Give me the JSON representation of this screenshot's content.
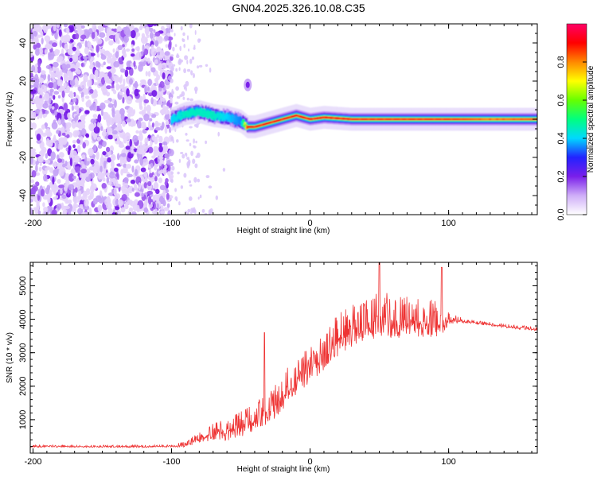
{
  "figure": {
    "title": "GN04.2025.326.10.08.C35"
  },
  "chart_data": [
    {
      "type": "heatmap",
      "title": "GN04.2025.326.10.08.C35",
      "xlabel": "Height of straight line (km)",
      "ylabel": "Frequency (Hz)",
      "xlim": [
        -202,
        164
      ],
      "ylim": [
        -50,
        50
      ],
      "xticks": [
        -200,
        -100,
        0,
        100
      ],
      "yticks": [
        -40,
        -20,
        0,
        20,
        40
      ],
      "colorbar": {
        "label": "Normalized spectral amplitude",
        "range": [
          0.0,
          1.0
        ],
        "ticks": [
          "0.0",
          "0.2",
          "0.4",
          "0.6",
          "0.8"
        ],
        "colormap": [
          "#ffffff",
          "#cfaef8",
          "#7a1fea",
          "#2222ff",
          "#00d8ff",
          "#00ff80",
          "#66ff00",
          "#ffff00",
          "#ff8800",
          "#ff0000",
          "#ff0066"
        ]
      },
      "regions": [
        {
          "name": "noise",
          "x_range": [
            -202,
            -100
          ],
          "freq_range": [
            -50,
            50
          ],
          "amplitude": 0.15
        },
        {
          "name": "scattered",
          "x_range": [
            -100,
            -80
          ],
          "freq_range": [
            -50,
            50
          ],
          "amplitude": 0.05
        },
        {
          "name": "burst",
          "x": -45,
          "freq": 18,
          "amplitude": 0.2
        }
      ],
      "ridge": {
        "x": [
          -100,
          -90,
          -80,
          -70,
          -60,
          -50,
          -45,
          -40,
          -30,
          -20,
          -10,
          0,
          10,
          30,
          60,
          100,
          130,
          164
        ],
        "freq": [
          0,
          3,
          4,
          2,
          1,
          -1,
          -4,
          -4,
          -2,
          0,
          2,
          0,
          1,
          0,
          0,
          0,
          0,
          0
        ],
        "amplitude": [
          0.4,
          0.45,
          0.45,
          0.45,
          0.4,
          0.35,
          0.9,
          0.9,
          0.9,
          0.9,
          0.9,
          0.9,
          0.9,
          0.9,
          0.9,
          0.9,
          0.8,
          0.85
        ]
      }
    },
    {
      "type": "line",
      "xlabel": "Height of straight line (km)",
      "ylabel": "SNR (10 * v/v)",
      "xlim": [
        -202,
        164
      ],
      "ylim": [
        0,
        5700
      ],
      "xticks": [
        -200,
        -100,
        0,
        100
      ],
      "yticks": [
        1000,
        2000,
        3000,
        4000,
        5000
      ],
      "series": [
        {
          "name": "SNR",
          "color": "#ee3333",
          "x": [
            -202,
            -180,
            -160,
            -140,
            -120,
            -100,
            -90,
            -80,
            -70,
            -60,
            -50,
            -40,
            -30,
            -20,
            -10,
            0,
            10,
            20,
            30,
            40,
            50,
            60,
            70,
            80,
            90,
            95,
            100,
            110,
            120,
            130,
            140,
            150,
            160,
            164
          ],
          "y": [
            200,
            200,
            200,
            200,
            200,
            210,
            250,
            450,
            600,
            650,
            800,
            1000,
            1300,
            1700,
            2200,
            2600,
            3000,
            3400,
            3700,
            3900,
            4000,
            4000,
            4000,
            3950,
            3950,
            3950,
            4000,
            3950,
            3900,
            3850,
            3800,
            3750,
            3720,
            3700
          ],
          "noise": [
            60,
            60,
            60,
            60,
            60,
            60,
            150,
            300,
            450,
            550,
            650,
            700,
            850,
            950,
            1000,
            1000,
            1050,
            1100,
            1100,
            1150,
            1200,
            1150,
            1050,
            1000,
            950,
            900,
            300,
            120,
            110,
            100,
            100,
            100,
            100,
            100
          ],
          "peaks": [
            {
              "x": -33,
              "y": 3600
            },
            {
              "x": 50,
              "y": 5700
            },
            {
              "x": 95,
              "y": 5550
            }
          ]
        }
      ]
    }
  ]
}
